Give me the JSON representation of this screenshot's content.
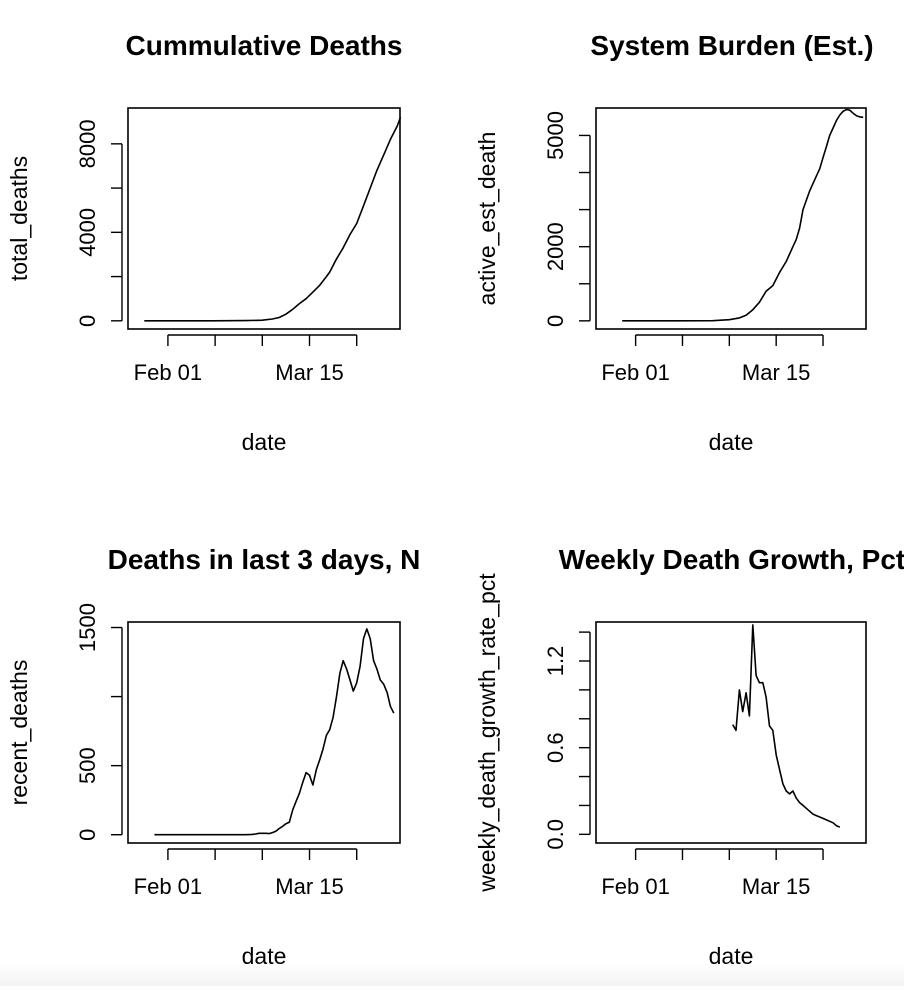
{
  "chart_data": [
    {
      "type": "line",
      "title": "Cummulative Deaths",
      "xlabel": "date",
      "ylabel": "total_deaths",
      "x_range": [
        0,
        71
      ],
      "xlim": [
        -4.84,
        75.84
      ],
      "ylim": [
        -370,
        9620
      ],
      "x_ticks": [
        {
          "value": 7,
          "label": "Feb 01"
        },
        {
          "value": 21,
          "label": ""
        },
        {
          "value": 35,
          "label": ""
        },
        {
          "value": 49,
          "label": "Mar 15"
        },
        {
          "value": 63,
          "label": ""
        }
      ],
      "y_ticks": [
        {
          "value": 0,
          "label": "0"
        },
        {
          "value": 2000,
          "label": ""
        },
        {
          "value": 4000,
          "label": "4000"
        },
        {
          "value": 6000,
          "label": ""
        },
        {
          "value": 8000,
          "label": "8000"
        }
      ],
      "series": [
        {
          "name": "total_deaths",
          "points": [
            [
              0,
              0
            ],
            [
              10,
              0
            ],
            [
              20,
              2
            ],
            [
              30,
              10
            ],
            [
              35,
              30
            ],
            [
              38,
              80
            ],
            [
              40,
              150
            ],
            [
              42,
              300
            ],
            [
              44,
              520
            ],
            [
              46,
              780
            ],
            [
              48,
              1000
            ],
            [
              50,
              1300
            ],
            [
              52,
              1600
            ],
            [
              54,
              2000
            ],
            [
              55,
              2200
            ],
            [
              57,
              2800
            ],
            [
              59,
              3300
            ],
            [
              61,
              3900
            ],
            [
              63,
              4400
            ],
            [
              65,
              5200
            ],
            [
              67,
              6000
            ],
            [
              69,
              6800
            ],
            [
              71,
              7500
            ],
            [
              73,
              8200
            ],
            [
              75,
              8800
            ],
            [
              76,
              9200
            ]
          ]
        }
      ]
    },
    {
      "type": "line",
      "title": "System Burden (Est.)",
      "xlabel": "date",
      "ylabel": "active_est_death",
      "x_range": [
        0,
        71
      ],
      "xlim": [
        -4.84,
        75.84
      ],
      "ylim": [
        -220,
        5740
      ],
      "x_ticks": [
        {
          "value": 7,
          "label": "Feb 01"
        },
        {
          "value": 21,
          "label": ""
        },
        {
          "value": 35,
          "label": ""
        },
        {
          "value": 49,
          "label": "Mar 15"
        },
        {
          "value": 63,
          "label": ""
        }
      ],
      "y_ticks": [
        {
          "value": 0,
          "label": "0"
        },
        {
          "value": 1000,
          "label": ""
        },
        {
          "value": 2000,
          "label": "2000"
        },
        {
          "value": 3000,
          "label": ""
        },
        {
          "value": 4000,
          "label": ""
        },
        {
          "value": 5000,
          "label": "5000"
        }
      ],
      "series": [
        {
          "name": "active_est_death",
          "points": [
            [
              3,
              0
            ],
            [
              20,
              0
            ],
            [
              30,
              5
            ],
            [
              35,
              30
            ],
            [
              38,
              80
            ],
            [
              40,
              150
            ],
            [
              42,
              300
            ],
            [
              44,
              500
            ],
            [
              46,
              800
            ],
            [
              48,
              950
            ],
            [
              50,
              1300
            ],
            [
              52,
              1600
            ],
            [
              54,
              2000
            ],
            [
              55,
              2200
            ],
            [
              56,
              2500
            ],
            [
              57,
              3000
            ],
            [
              59,
              3500
            ],
            [
              61,
              3900
            ],
            [
              62,
              4100
            ],
            [
              63,
              4400
            ],
            [
              64,
              4700
            ],
            [
              65,
              5000
            ],
            [
              66,
              5200
            ],
            [
              67,
              5400
            ],
            [
              68,
              5550
            ],
            [
              69,
              5650
            ],
            [
              70,
              5700
            ],
            [
              71,
              5680
            ],
            [
              72,
              5600
            ],
            [
              73,
              5530
            ],
            [
              74,
              5500
            ],
            [
              75,
              5490
            ]
          ]
        }
      ]
    },
    {
      "type": "line",
      "title": "Deaths in last 3 days, N",
      "xlabel": "date",
      "ylabel": "recent_deaths",
      "x_range": [
        0,
        71
      ],
      "xlim": [
        -4.84,
        75.84
      ],
      "ylim": [
        -60,
        1540
      ],
      "x_ticks": [
        {
          "value": 7,
          "label": "Feb 01"
        },
        {
          "value": 21,
          "label": ""
        },
        {
          "value": 35,
          "label": ""
        },
        {
          "value": 49,
          "label": "Mar 15"
        },
        {
          "value": 63,
          "label": ""
        }
      ],
      "y_ticks": [
        {
          "value": 0,
          "label": "0"
        },
        {
          "value": 500,
          "label": "500"
        },
        {
          "value": 1000,
          "label": ""
        },
        {
          "value": 1500,
          "label": "1500"
        }
      ],
      "series": [
        {
          "name": "recent_deaths",
          "points": [
            [
              3,
              0
            ],
            [
              10,
              0
            ],
            [
              20,
              0
            ],
            [
              30,
              0
            ],
            [
              32,
              2
            ],
            [
              33,
              5
            ],
            [
              34,
              10
            ],
            [
              36,
              10
            ],
            [
              37,
              8
            ],
            [
              38,
              15
            ],
            [
              39,
              25
            ],
            [
              40,
              45
            ],
            [
              41,
              60
            ],
            [
              42,
              80
            ],
            [
              43,
              90
            ],
            [
              44,
              180
            ],
            [
              45,
              240
            ],
            [
              46,
              300
            ],
            [
              47,
              380
            ],
            [
              48,
              450
            ],
            [
              49,
              430
            ],
            [
              50,
              360
            ],
            [
              51,
              470
            ],
            [
              52,
              540
            ],
            [
              53,
              620
            ],
            [
              54,
              720
            ],
            [
              55,
              760
            ],
            [
              56,
              850
            ],
            [
              57,
              1000
            ],
            [
              58,
              1170
            ],
            [
              59,
              1260
            ],
            [
              60,
              1200
            ],
            [
              61,
              1120
            ],
            [
              62,
              1040
            ],
            [
              63,
              1100
            ],
            [
              64,
              1220
            ],
            [
              65,
              1420
            ],
            [
              66,
              1490
            ],
            [
              67,
              1420
            ],
            [
              68,
              1260
            ],
            [
              69,
              1200
            ],
            [
              70,
              1120
            ],
            [
              71,
              1090
            ],
            [
              72,
              1030
            ],
            [
              73,
              930
            ],
            [
              74,
              880
            ]
          ]
        }
      ]
    },
    {
      "type": "line",
      "title": "Weekly Death Growth, Pct",
      "xlabel": "date",
      "ylabel": "weekly_death_growth_rate_pct",
      "x_range": [
        0,
        71
      ],
      "xlim": [
        -4.84,
        75.84
      ],
      "ylim": [
        -0.06,
        1.47
      ],
      "x_ticks": [
        {
          "value": 7,
          "label": "Feb 01"
        },
        {
          "value": 21,
          "label": ""
        },
        {
          "value": 35,
          "label": ""
        },
        {
          "value": 49,
          "label": "Mar 15"
        },
        {
          "value": 63,
          "label": ""
        }
      ],
      "y_ticks": [
        {
          "value": 0.0,
          "label": "0.0"
        },
        {
          "value": 0.2,
          "label": ""
        },
        {
          "value": 0.4,
          "label": ""
        },
        {
          "value": 0.6,
          "label": "0.6"
        },
        {
          "value": 0.8,
          "label": ""
        },
        {
          "value": 1.0,
          "label": ""
        },
        {
          "value": 1.2,
          "label": "1.2"
        },
        {
          "value": 1.4,
          "label": ""
        }
      ],
      "series": [
        {
          "name": "weekly_death_growth_rate_pct",
          "points": [
            [
              36,
              0.76
            ],
            [
              37,
              0.72
            ],
            [
              38,
              1.0
            ],
            [
              39,
              0.85
            ],
            [
              40,
              0.98
            ],
            [
              41,
              0.82
            ],
            [
              42,
              1.45
            ],
            [
              43,
              1.1
            ],
            [
              44,
              1.05
            ],
            [
              45,
              1.05
            ],
            [
              46,
              0.95
            ],
            [
              47,
              0.75
            ],
            [
              48,
              0.72
            ],
            [
              49,
              0.55
            ],
            [
              50,
              0.45
            ],
            [
              51,
              0.35
            ],
            [
              52,
              0.3
            ],
            [
              53,
              0.28
            ],
            [
              54,
              0.3
            ],
            [
              55,
              0.25
            ],
            [
              56,
              0.22
            ],
            [
              57,
              0.2
            ],
            [
              58,
              0.18
            ],
            [
              59,
              0.16
            ],
            [
              60,
              0.14
            ],
            [
              61,
              0.13
            ],
            [
              62,
              0.12
            ],
            [
              63,
              0.11
            ],
            [
              64,
              0.1
            ],
            [
              65,
              0.09
            ],
            [
              66,
              0.08
            ],
            [
              67,
              0.06
            ],
            [
              68,
              0.05
            ]
          ]
        }
      ]
    }
  ]
}
